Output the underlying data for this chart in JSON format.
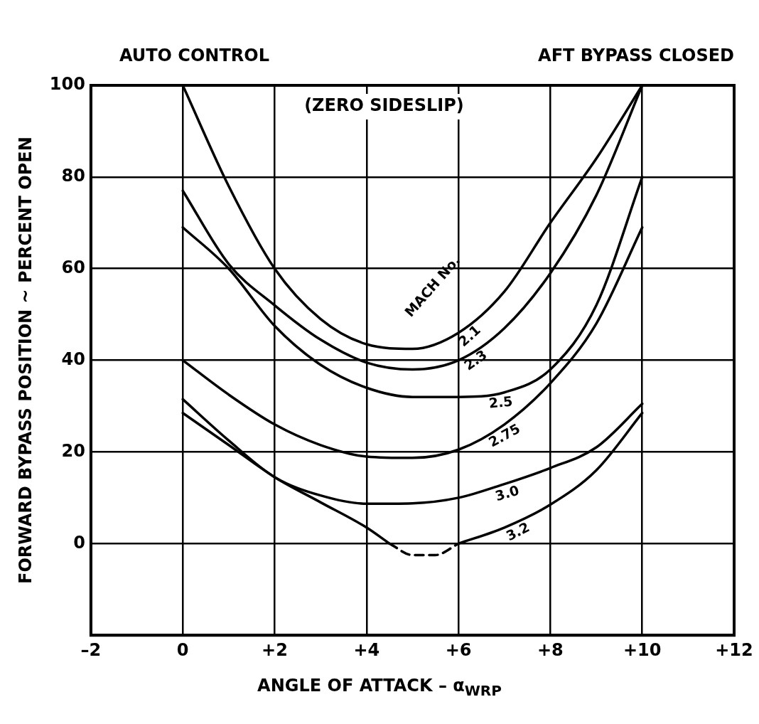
{
  "chart_data": {
    "type": "line",
    "xlabel": "ANGLE OF ATTACK – α$_{WRP}$",
    "ylabel": "FORWARD BYPASS POSITION ~ PERCENT OPEN",
    "annotations": [
      "AUTO CONTROL",
      "AFT BYPASS CLOSED",
      "(ZERO SIDESLIP)",
      "MACH No."
    ],
    "x": [
      0,
      1,
      2,
      3,
      4,
      5,
      6,
      7,
      8,
      9,
      10
    ],
    "series": [
      {
        "name": "2.1",
        "color": "#000000",
        "values": [
          100,
          78,
          60,
          49,
          43.5,
          42.5,
          46,
          55,
          70,
          84,
          100
        ]
      },
      {
        "name": "2.3",
        "color": "#000000",
        "values": [
          77,
          61,
          52,
          44.5,
          39.5,
          38,
          40,
          47,
          59,
          76,
          100
        ]
      },
      {
        "name": "2.5",
        "color": "#000000",
        "values": [
          69,
          60,
          47.5,
          39,
          34,
          32,
          32,
          33,
          38,
          52,
          80
        ]
      },
      {
        "name": "2.75",
        "color": "#000000",
        "values": [
          40,
          32.5,
          26,
          21.5,
          19,
          18.7,
          20.5,
          26,
          35,
          48,
          69
        ]
      },
      {
        "name": "3.0",
        "color": "#000000",
        "values": [
          31.5,
          22.5,
          14.5,
          10.5,
          8.7,
          8.8,
          10,
          13,
          16.5,
          21,
          30.5
        ]
      },
      {
        "name": "3.2",
        "color": "#000000",
        "x": [
          0,
          1,
          2,
          3,
          4,
          4.5,
          5,
          6,
          7,
          8,
          9,
          10
        ],
        "values": [
          28.5,
          21.5,
          14.5,
          9,
          3.5,
          0,
          null,
          0,
          3.5,
          8.5,
          16,
          28.5
        ]
      },
      {
        "color": "#000000",
        "line_style": "dashed",
        "x": [
          4.5,
          5,
          5.5,
          6
        ],
        "values": [
          0,
          -2.5,
          -2.5,
          0
        ]
      }
    ],
    "xlim": [
      -2,
      12
    ],
    "xticks": [
      {
        "value": -2,
        "label": "–2"
      },
      0,
      {
        "value": 2,
        "label": "+2"
      },
      {
        "value": 4,
        "label": "+4"
      },
      {
        "value": 6,
        "label": "+6"
      },
      {
        "value": 8,
        "label": "+8"
      },
      {
        "value": 10,
        "label": "+10"
      },
      {
        "value": 12,
        "label": "+12"
      }
    ],
    "ylim": [
      -20,
      100
    ],
    "yticks": [
      0,
      20,
      40,
      60,
      80,
      100
    ],
    "grid": true,
    "legend": false,
    "marker": "none",
    "line_style": "solid"
  }
}
